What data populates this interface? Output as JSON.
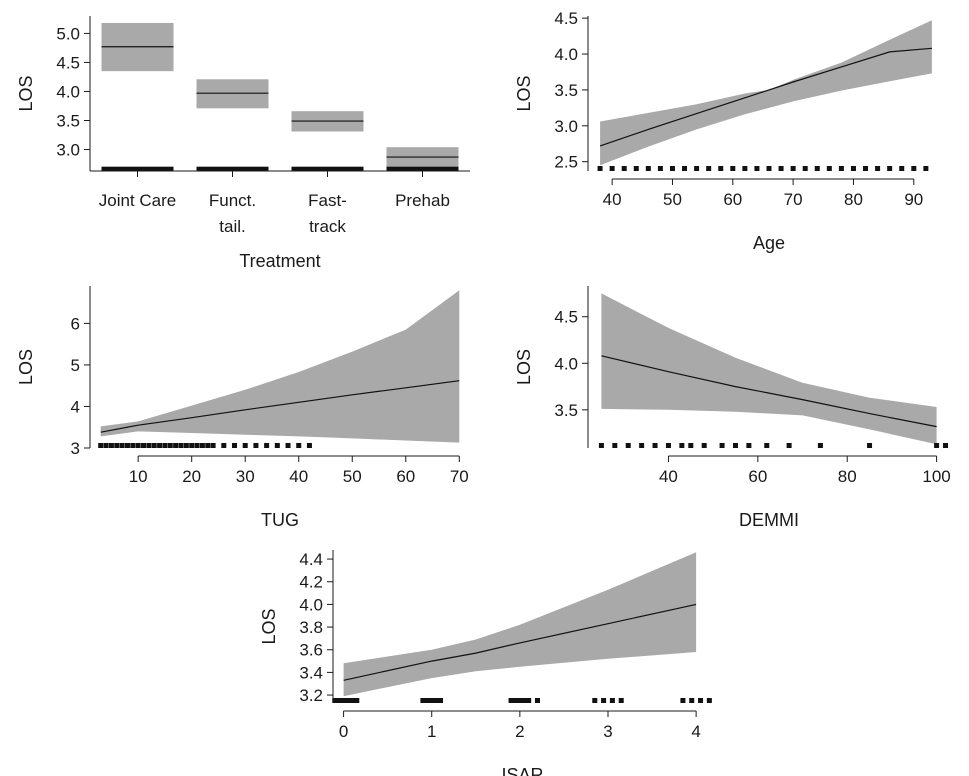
{
  "colors": {
    "band": "#a9a9a9",
    "line": "#111111",
    "axis": "#1a1a1a",
    "rug": "#111111"
  },
  "chart_data": [
    {
      "id": "treatment",
      "type": "bar",
      "xlabel": "Treatment",
      "ylabel": "LOS",
      "categories": [
        "Joint Care",
        "Funct.\ntail.",
        "Fast-\ntrack",
        "Prehab"
      ],
      "estimates": [
        4.77,
        3.97,
        3.49,
        2.87
      ],
      "ci_lower": [
        4.35,
        3.71,
        3.31,
        2.7
      ],
      "ci_upper": [
        5.18,
        4.21,
        3.66,
        3.04
      ],
      "rug_value": 2.67,
      "ylim": [
        2.63,
        5.3
      ],
      "yticks": [
        3.0,
        3.5,
        4.0,
        4.5,
        5.0
      ],
      "ytick_labels": [
        "3.0",
        "3.5",
        "4.0",
        "4.5",
        "5.0"
      ]
    },
    {
      "id": "age",
      "type": "line",
      "xlabel": "Age",
      "ylabel": "LOS",
      "x": [
        38,
        46,
        54,
        62,
        66,
        70,
        78,
        86,
        93
      ],
      "y": [
        2.72,
        2.95,
        3.17,
        3.39,
        3.5,
        3.61,
        3.82,
        4.03,
        4.08
      ],
      "ci_lower": [
        2.45,
        2.71,
        2.95,
        3.16,
        3.25,
        3.34,
        3.49,
        3.62,
        3.73
      ],
      "ci_upper": [
        3.06,
        3.18,
        3.3,
        3.45,
        3.5,
        3.64,
        3.88,
        4.2,
        4.47
      ],
      "rug": [
        38,
        40,
        42,
        44,
        46,
        48,
        50,
        52,
        54,
        56,
        58,
        60,
        62,
        64,
        66,
        68,
        70,
        72,
        74,
        76,
        78,
        80,
        82,
        84,
        86,
        88,
        90,
        92
      ],
      "xlim": [
        36,
        96
      ],
      "ylim": [
        2.37,
        4.53
      ],
      "xticks": [
        40,
        50,
        60,
        70,
        80,
        90
      ],
      "yticks": [
        2.5,
        3.0,
        3.5,
        4.0,
        4.5
      ],
      "ytick_labels": [
        "2.5",
        "3.0",
        "3.5",
        "4.0",
        "4.5"
      ]
    },
    {
      "id": "tug",
      "type": "line",
      "xlabel": "TUG",
      "ylabel": "LOS",
      "x": [
        3,
        10,
        20,
        30,
        40,
        50,
        60,
        70
      ],
      "y": [
        3.38,
        3.55,
        3.73,
        3.92,
        4.1,
        4.28,
        4.45,
        4.62
      ],
      "ci_lower": [
        3.28,
        3.4,
        3.36,
        3.32,
        3.28,
        3.23,
        3.18,
        3.13
      ],
      "ci_upper": [
        3.52,
        3.64,
        4.02,
        4.4,
        4.83,
        5.32,
        5.85,
        6.8
      ],
      "rug": [
        3,
        4,
        5,
        6,
        7,
        8,
        9,
        10,
        11,
        12,
        13,
        14,
        15,
        16,
        17,
        18,
        19,
        20,
        21,
        22,
        23,
        24,
        26,
        28,
        30,
        32,
        34,
        36,
        38,
        40,
        42
      ],
      "xlim": [
        1,
        72
      ],
      "ylim": [
        3.0,
        6.9
      ],
      "xticks": [
        10,
        20,
        30,
        40,
        50,
        60,
        70
      ],
      "yticks": [
        3,
        4,
        5,
        6
      ],
      "ytick_labels": [
        "3",
        "4",
        "5",
        "6"
      ]
    },
    {
      "id": "demmi",
      "type": "line",
      "xlabel": "DEMMI",
      "ylabel": "LOS",
      "x": [
        25,
        40,
        55,
        70,
        85,
        100
      ],
      "y": [
        4.08,
        3.91,
        3.75,
        3.61,
        3.46,
        3.32
      ],
      "ci_lower": [
        3.51,
        3.5,
        3.48,
        3.44,
        3.29,
        3.13
      ],
      "ci_upper": [
        4.75,
        4.38,
        4.06,
        3.79,
        3.63,
        3.53
      ],
      "rug": [
        25,
        28,
        31,
        34,
        37,
        40,
        43,
        45,
        48,
        52,
        55,
        58,
        62,
        67,
        74,
        85,
        100,
        102
      ],
      "xlim": [
        22,
        103
      ],
      "ylim": [
        3.09,
        4.83
      ],
      "xticks": [
        40,
        60,
        80,
        100
      ],
      "yticks": [
        3.5,
        4.0,
        4.5
      ],
      "ytick_labels": [
        "3.5",
        "4.0",
        "4.5"
      ]
    },
    {
      "id": "isar",
      "type": "line",
      "xlabel": "ISAR",
      "ylabel": "LOS",
      "x": [
        0,
        1,
        1.5,
        2,
        3,
        4
      ],
      "y": [
        3.33,
        3.5,
        3.57,
        3.66,
        3.83,
        4.0
      ],
      "ci_lower": [
        3.19,
        3.35,
        3.41,
        3.45,
        3.52,
        3.58
      ],
      "ci_upper": [
        3.48,
        3.6,
        3.69,
        3.82,
        4.13,
        4.46
      ],
      "rug": [
        -0.1,
        -0.05,
        0,
        0.05,
        0.1,
        0.15,
        0.9,
        0.95,
        1,
        1.05,
        1.1,
        1.9,
        1.95,
        2,
        2.05,
        2.1,
        2.2,
        2.85,
        2.95,
        3.05,
        3.15,
        3.85,
        3.95,
        4.05,
        4.15
      ],
      "xlim": [
        -0.12,
        4.18
      ],
      "ylim": [
        3.13,
        4.48
      ],
      "xticks": [
        0,
        1,
        2,
        3,
        4
      ],
      "yticks": [
        3.2,
        3.4,
        3.6,
        3.8,
        4.0,
        4.2,
        4.4
      ],
      "ytick_labels": [
        "3.2",
        "3.4",
        "3.6",
        "3.8",
        "4.0",
        "4.2",
        "4.4"
      ]
    }
  ]
}
